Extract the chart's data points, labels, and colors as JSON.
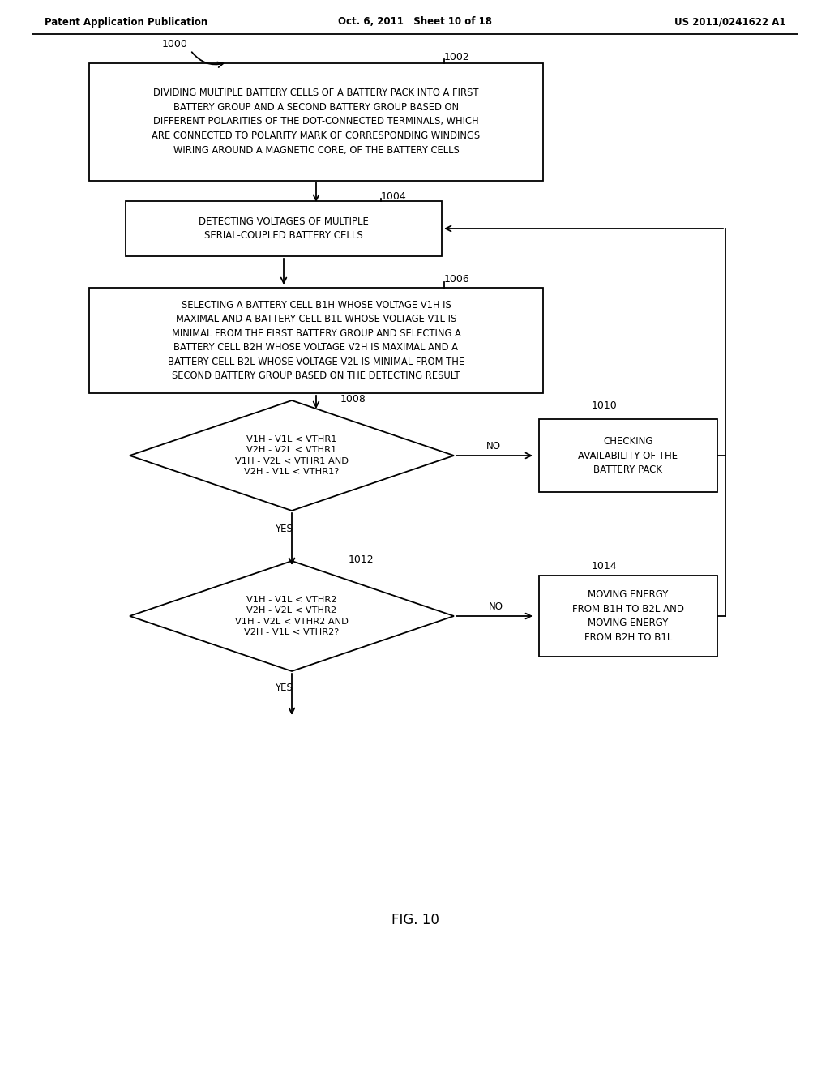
{
  "header_left": "Patent Application Publication",
  "header_mid": "Oct. 6, 2011   Sheet 10 of 18",
  "header_right": "US 2011/0241622 A1",
  "fig_label": "FIG. 10",
  "bg_color": "#ffffff",
  "line_color": "#000000",
  "text_color": "#000000",
  "box1002_text": "DIVIDING MULTIPLE BATTERY CELLS OF A BATTERY PACK INTO A FIRST\nBATTERY GROUP AND A SECOND BATTERY GROUP BASED ON\nDIFFERENT POLARITIES OF THE DOT-CONNECTED TERMINALS, WHICH\nARE CONNECTED TO POLARITY MARK OF CORRESPONDING WINDINGS\nWIRING AROUND A MAGNETIC CORE, OF THE BATTERY CELLS",
  "box1004_text": "DETECTING VOLTAGES OF MULTIPLE\nSERIAL-COUPLED BATTERY CELLS",
  "box1006_text": "SELECTING A BATTERY CELL B1H WHOSE VOLTAGE V1H IS\nMAXIMAL AND A BATTERY CELL B1L WHOSE VOLTAGE V1L IS\nMINIMAL FROM THE FIRST BATTERY GROUP AND SELECTING A\nBATTERY CELL B2H WHOSE VOLTAGE V2H IS MAXIMAL AND A\nBATTERY CELL B2L WHOSE VOLTAGE V2L IS MINIMAL FROM THE\nSECOND BATTERY GROUP BASED ON THE DETECTING RESULT",
  "diamond1008_lines": [
    "V1H - V1L < VTHR1",
    "V2H - V2L < VTHR1",
    "V1H - V2L < VTHR1 AND",
    "V2H - V1L < VTHR1?"
  ],
  "diamond1008_sub": [
    "1H",
    "1L",
    "THR1",
    "2H",
    "2L",
    "THR1",
    "1H",
    "2L",
    "THR1",
    "2H",
    "1L",
    "THR1"
  ],
  "box1010_text": "CHECKING\nAVAILABILITY OF THE\nBATTERY PACK",
  "diamond1012_lines": [
    "V1H - V1L < VTHR2",
    "V2H - V2L < VTHR2",
    "V1H - V2L < VTHR2 AND",
    "V2H - V1L < VTHR2?"
  ],
  "box1014_text": "MOVING ENERGY\nFROM B1H TO B2L AND\nMOVING ENERGY\nFROM B2H TO B1L",
  "label_1000": "1000",
  "label_1002": "1002",
  "label_1004": "1004",
  "label_1006": "1006",
  "label_1008": "1008",
  "label_1010": "1010",
  "label_1012": "1012",
  "label_1014": "1014"
}
